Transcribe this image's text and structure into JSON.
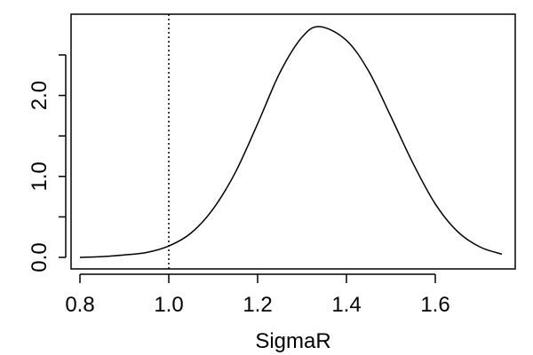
{
  "chart_data": {
    "type": "line",
    "title": "",
    "xlabel": "SigmaR",
    "ylabel": "",
    "xlim": [
      0.78,
      1.78
    ],
    "ylim": [
      0,
      2.85
    ],
    "xticks": [
      0.8,
      1.0,
      1.2,
      1.4,
      1.6
    ],
    "xtick_labels": [
      "0.8",
      "1.0",
      "1.2",
      "1.4",
      "1.6"
    ],
    "yticks": [
      0.0,
      0.5,
      1.0,
      1.5,
      2.0,
      2.5
    ],
    "ytick_labels": [
      "0.0",
      "",
      "1.0",
      "",
      "2.0",
      ""
    ],
    "grid": false,
    "reference_line": {
      "x": 1.0,
      "style": "dotted"
    },
    "series": [
      {
        "x": [
          0.8,
          0.85,
          0.9,
          0.95,
          1.0,
          1.05,
          1.1,
          1.15,
          1.2,
          1.25,
          1.3,
          1.34,
          1.4,
          1.45,
          1.5,
          1.55,
          1.6,
          1.65,
          1.7,
          1.75
        ],
        "values": [
          0.0,
          0.01,
          0.03,
          0.06,
          0.14,
          0.3,
          0.6,
          1.05,
          1.65,
          2.28,
          2.72,
          2.85,
          2.68,
          2.3,
          1.74,
          1.16,
          0.66,
          0.32,
          0.13,
          0.04
        ]
      }
    ]
  }
}
